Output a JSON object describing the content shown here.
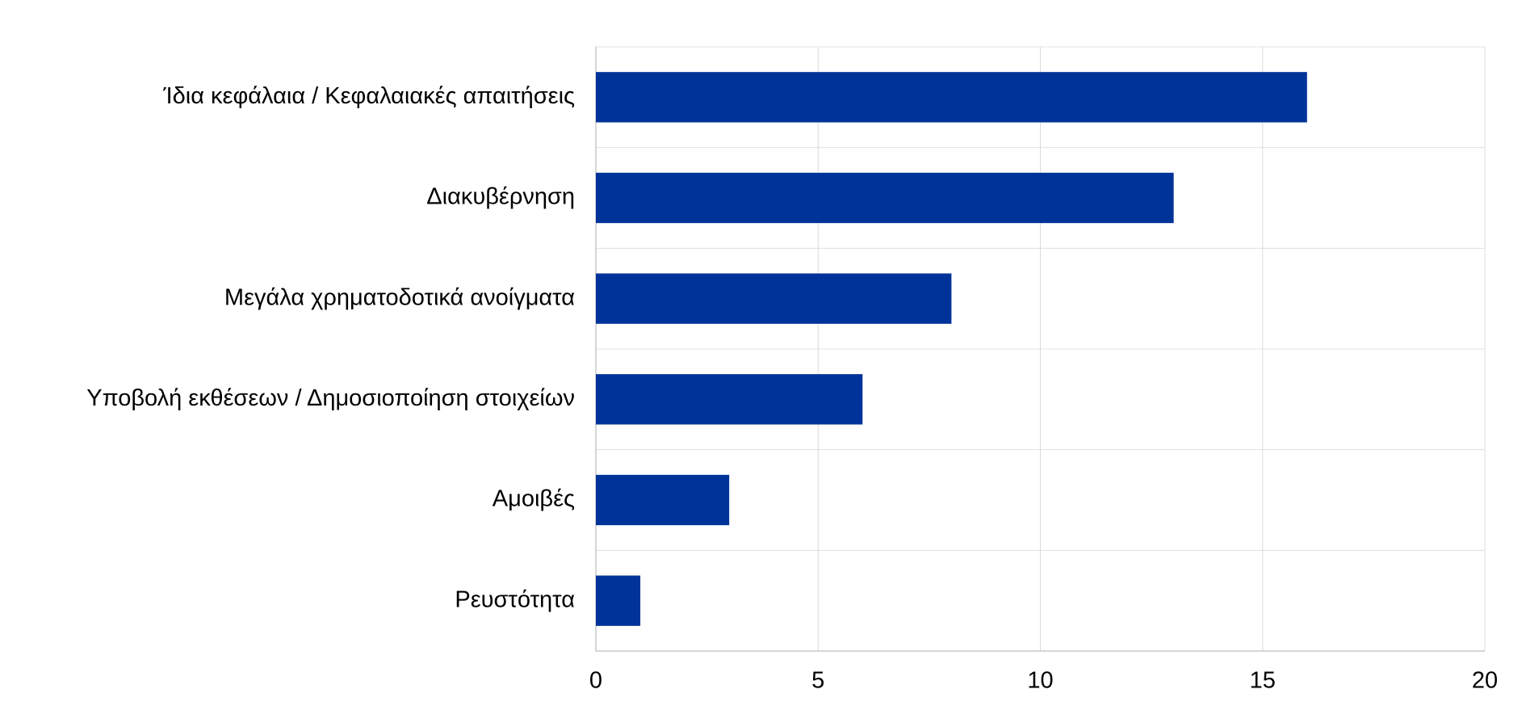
{
  "chart_data": {
    "type": "bar",
    "orientation": "horizontal",
    "categories": [
      "Ίδια κεφάλαια / Κεφαλαιακές απαιτήσεις",
      "Διακυβέρνηση",
      "Μεγάλα χρηματοδοτικά ανοίγματα",
      "Υποβολή εκθέσεων / Δημοσιοποίηση στοιχείων",
      "Αμοιβές",
      "Ρευστότητα"
    ],
    "values": [
      16,
      13,
      8,
      6,
      3,
      1
    ],
    "color": "#003399",
    "xlim": [
      0,
      20
    ],
    "xticks": [
      0,
      5,
      10,
      15,
      20
    ],
    "grid": true
  }
}
